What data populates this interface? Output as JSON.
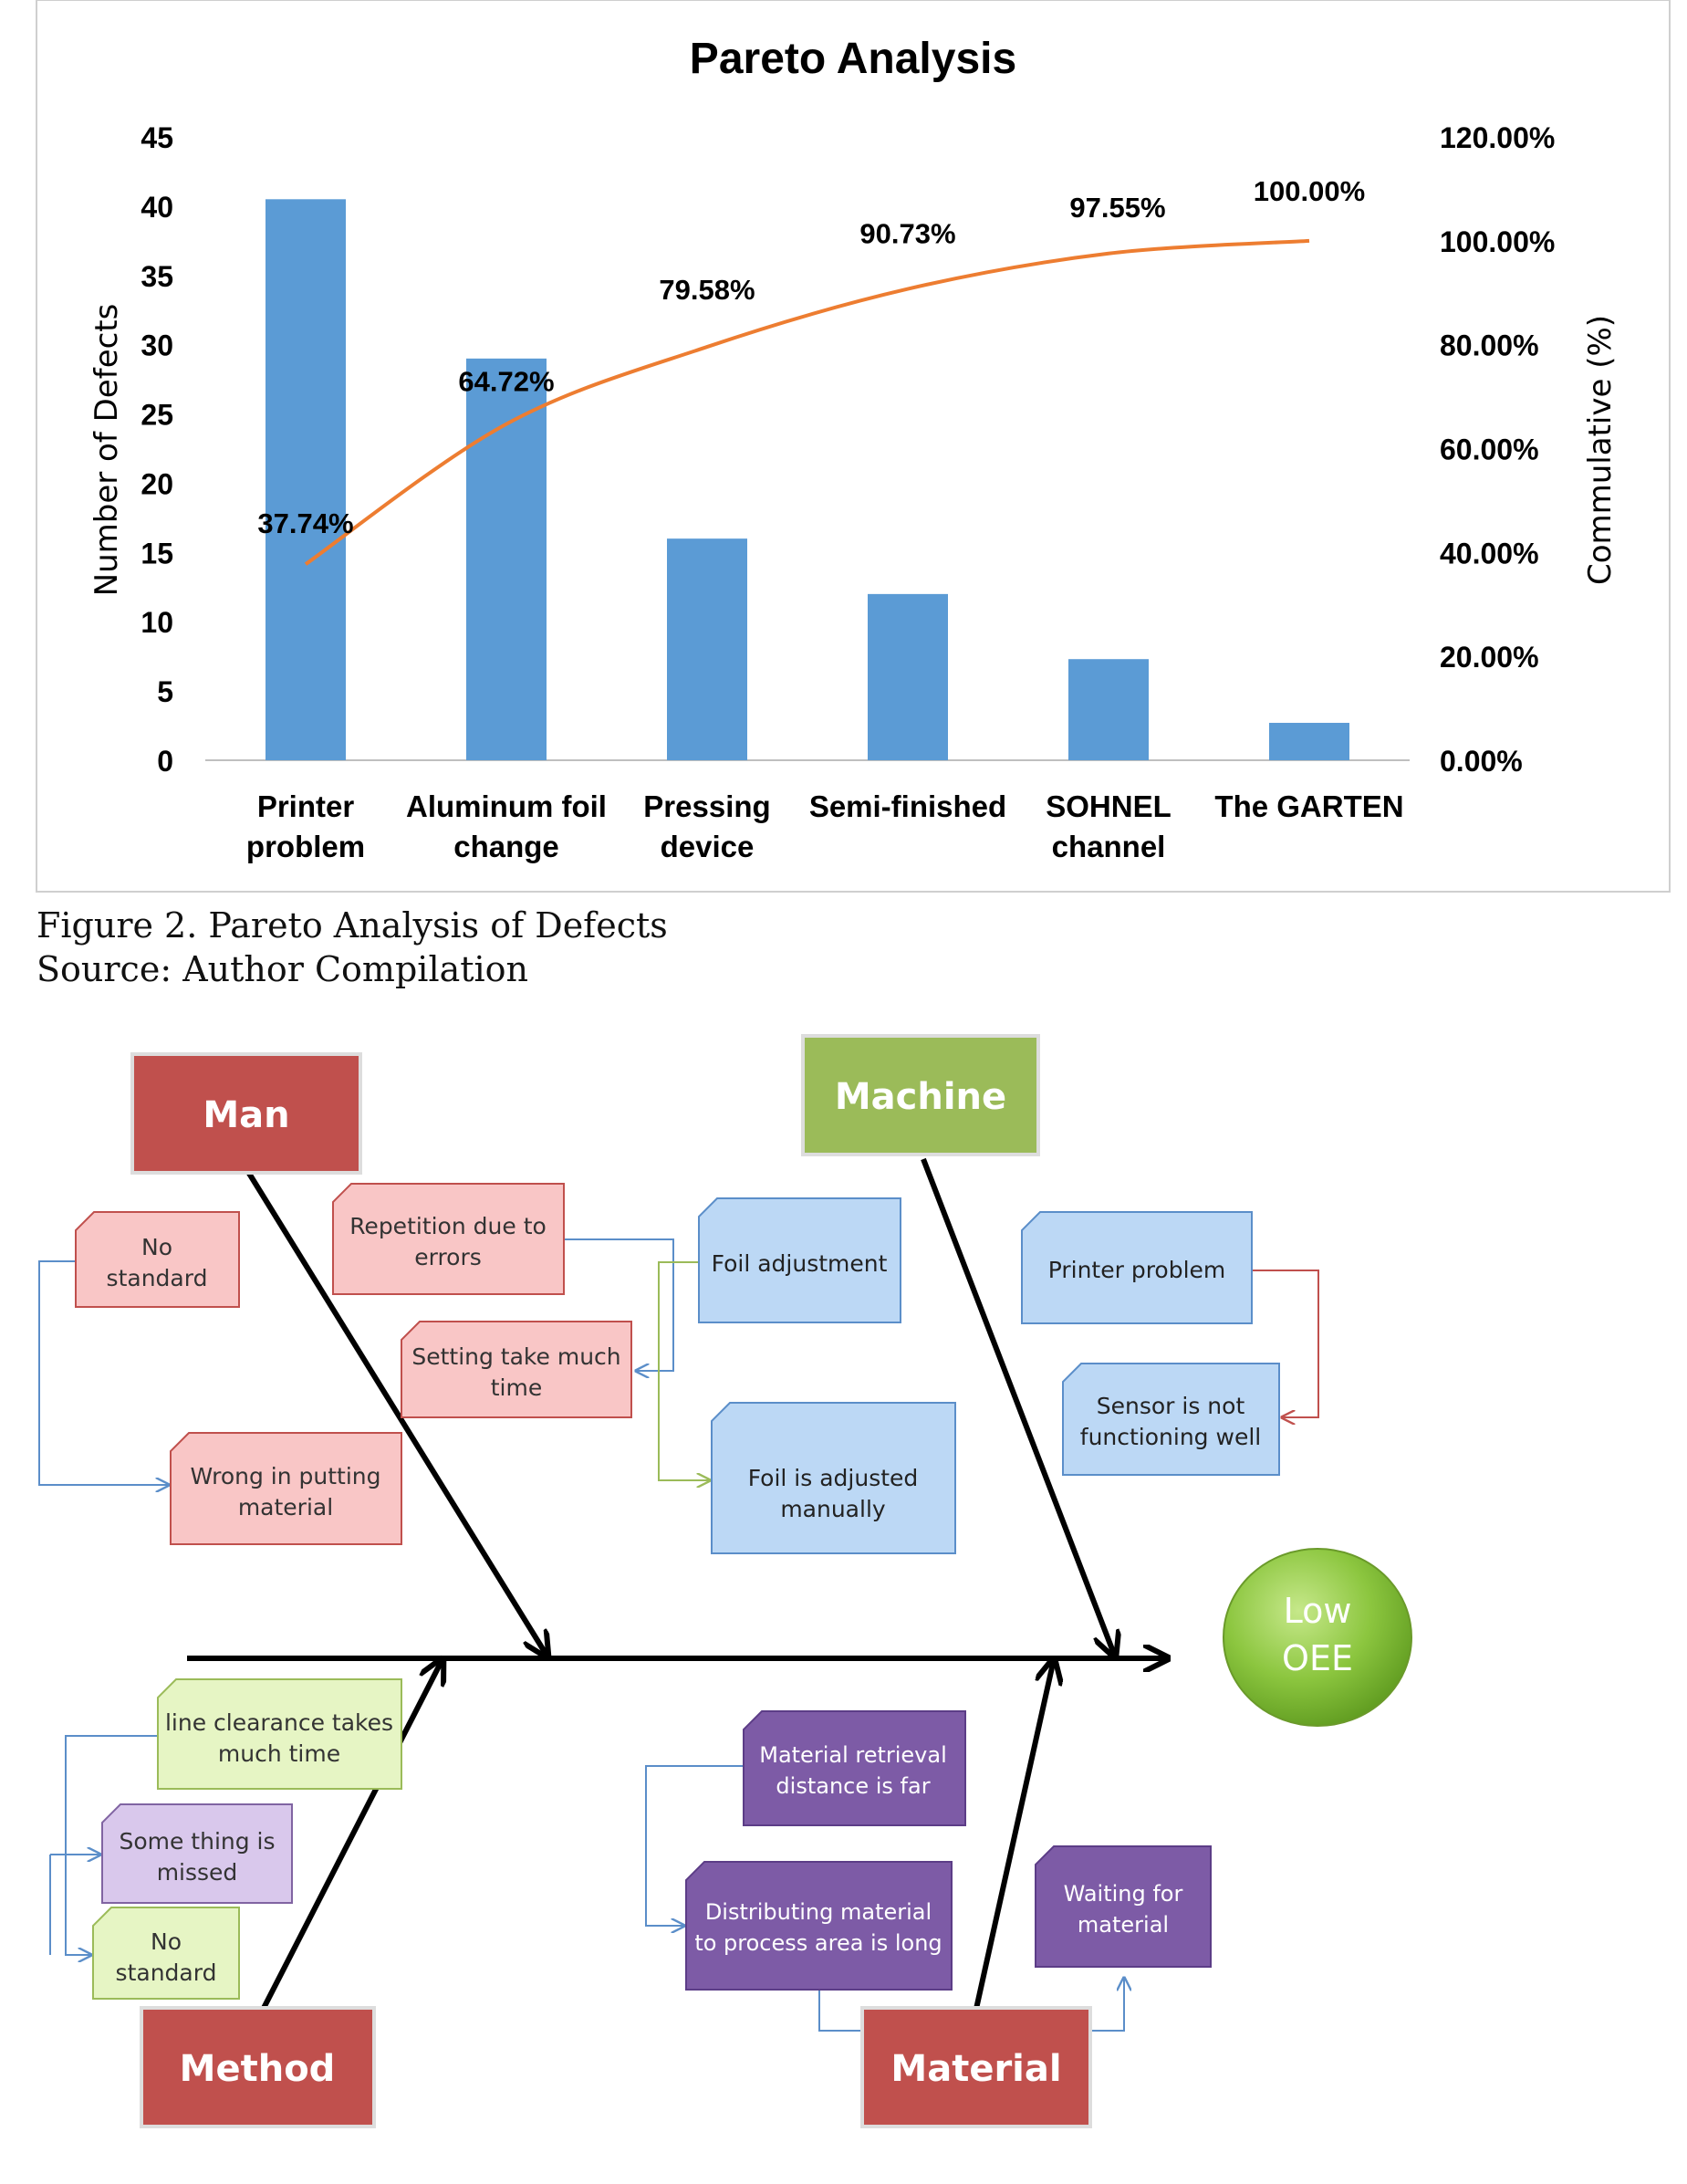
{
  "chart_data": {
    "type": "bar",
    "title": "Pareto Analysis",
    "categories": [
      [
        "Printer",
        "problem"
      ],
      [
        "Aluminum foil",
        "change"
      ],
      [
        "Pressing",
        "device"
      ],
      [
        "Semi-finished"
      ],
      [
        "SOHNEL",
        "channel"
      ],
      [
        "The GARTEN"
      ]
    ],
    "series": [
      {
        "type": "bar",
        "axis": "left",
        "color": "#5b9bd5",
        "values": [
          40.5,
          29,
          16,
          12,
          7.3,
          2.7
        ]
      },
      {
        "type": "line",
        "axis": "right",
        "color": "#ed7d31",
        "values": [
          37.74,
          64.72,
          79.58,
          90.73,
          97.55,
          100.0
        ],
        "labels": [
          "37.74%",
          "64.72%",
          "79.58%",
          "90.73%",
          "97.55%",
          "100.00%"
        ]
      }
    ],
    "ylabel": "Number of Defects",
    "y2label": "Commulative (%)",
    "ylim": [
      0,
      45
    ],
    "y2lim": [
      0,
      120
    ],
    "yticks": [
      "0",
      "5",
      "10",
      "15",
      "20",
      "25",
      "30",
      "35",
      "40",
      "45"
    ],
    "y2ticks": [
      "0.00%",
      "20.00%",
      "40.00%",
      "60.00%",
      "80.00%",
      "100.00%",
      "120.00%"
    ],
    "grid": false,
    "legend": "none"
  },
  "caption": {
    "figure": "Figure 2. Pareto Analysis of Defects",
    "source": "Source: Author Compilation"
  },
  "fishbone": {
    "effect": [
      "Low",
      "OEE"
    ],
    "categories": {
      "man": "Man",
      "machine": "Machine",
      "method": "Method",
      "material": "Material"
    },
    "causes": {
      "no_standard_man": [
        "No",
        "standard"
      ],
      "repetition": [
        "Repetition due to",
        "errors"
      ],
      "setting": [
        "Setting take much",
        "time"
      ],
      "wrong_putting": [
        "Wrong in putting",
        "material"
      ],
      "foil_adjustment": [
        "Foil adjustment"
      ],
      "foil_manual": [
        "Foil is adjusted",
        "manually"
      ],
      "printer_problem": [
        "Printer problem"
      ],
      "sensor": [
        "Sensor is not",
        "functioning well"
      ],
      "line_clearance": [
        "line clearance takes",
        "much time"
      ],
      "something_missed": [
        "Some thing is",
        "missed"
      ],
      "no_standard_method": [
        "No",
        "standard"
      ],
      "retrieval": [
        "Material retrieval",
        "distance is far"
      ],
      "distributing": [
        "Distributing material",
        "to process area is long"
      ],
      "waiting": [
        "Waiting for",
        "material"
      ]
    },
    "colors": {
      "red_box": "#c0504d",
      "green_box": "#9bbb59",
      "pink_box": "#f9c6c6",
      "blue_box": "#bcd8f5",
      "lightgreen_box": "#e6f5c4",
      "lavender_box": "#d9c8ec",
      "purple_box": "#7d5ba6",
      "effect_circle": "#8cc63f"
    }
  }
}
